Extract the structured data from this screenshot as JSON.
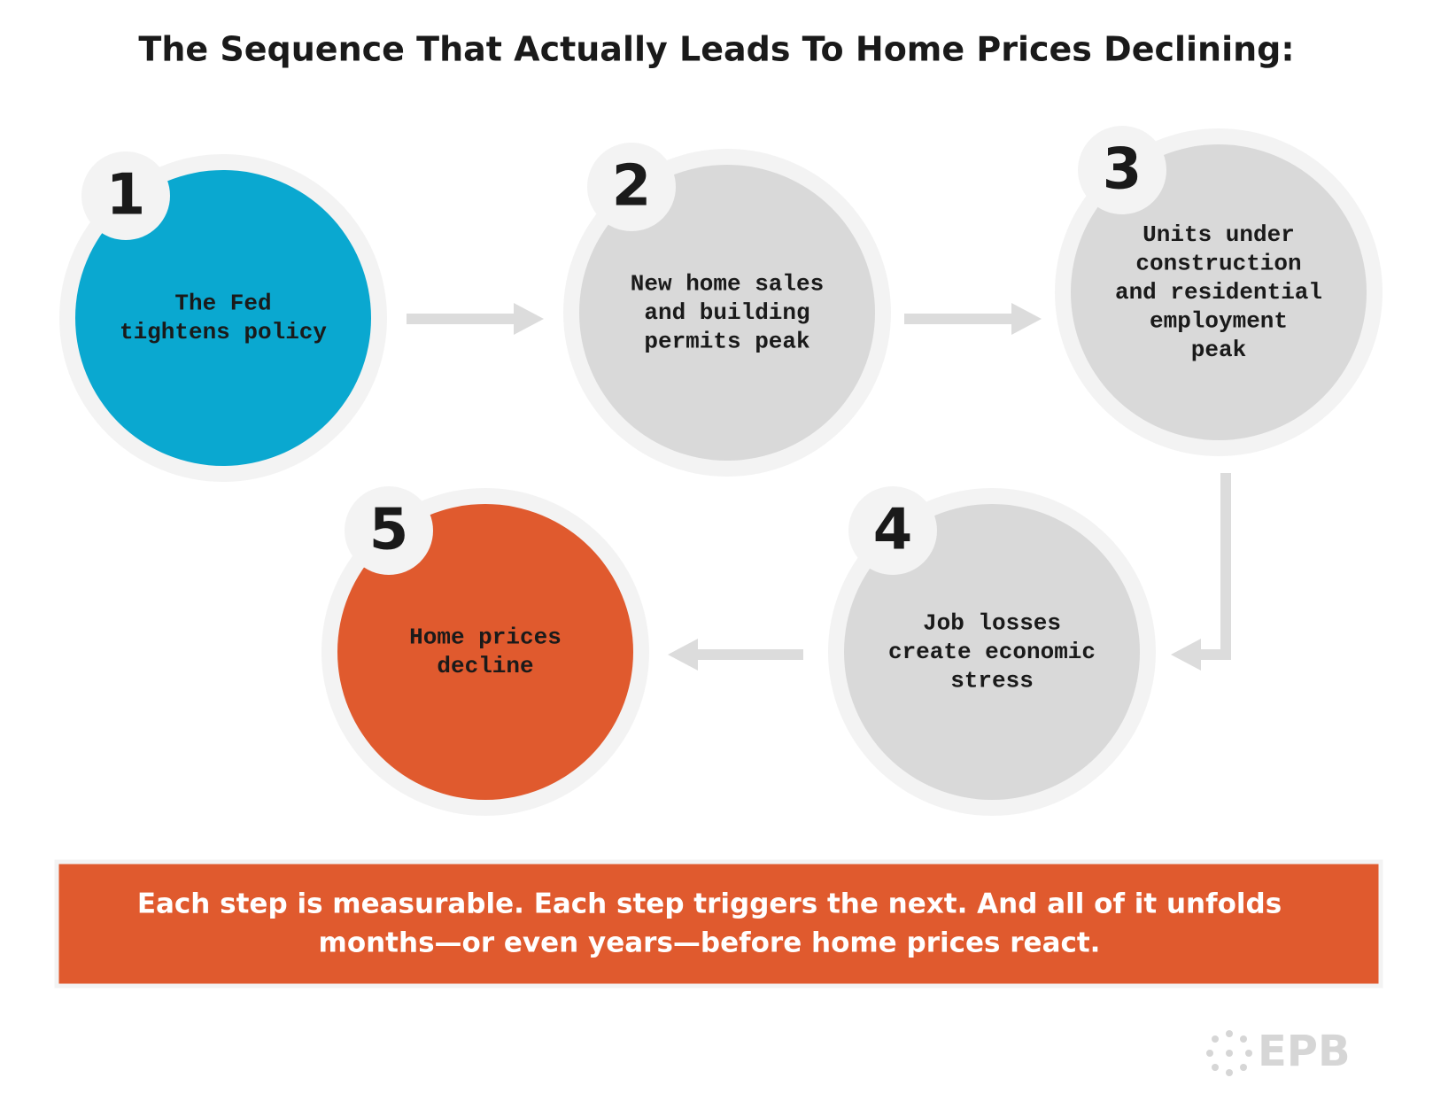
{
  "title": "The Sequence That Actually Leads To Home Prices Declining:",
  "steps": [
    {
      "number": "1",
      "lines": [
        "The Fed",
        "tightens policy"
      ]
    },
    {
      "number": "2",
      "lines": [
        "New home sales",
        "and building",
        "permits peak"
      ]
    },
    {
      "number": "3",
      "lines": [
        "Units under",
        "construction",
        "and residential",
        "employment",
        "peak"
      ]
    },
    {
      "number": "4",
      "lines": [
        "Job losses",
        "create economic",
        "stress"
      ]
    },
    {
      "number": "5",
      "lines": [
        "Home prices",
        "decline"
      ]
    }
  ],
  "footer": {
    "lines": [
      "Each step is measurable. Each step triggers the next. And all of it unfolds",
      "months—or even years—before home prices react."
    ]
  },
  "logo": "EPB"
}
